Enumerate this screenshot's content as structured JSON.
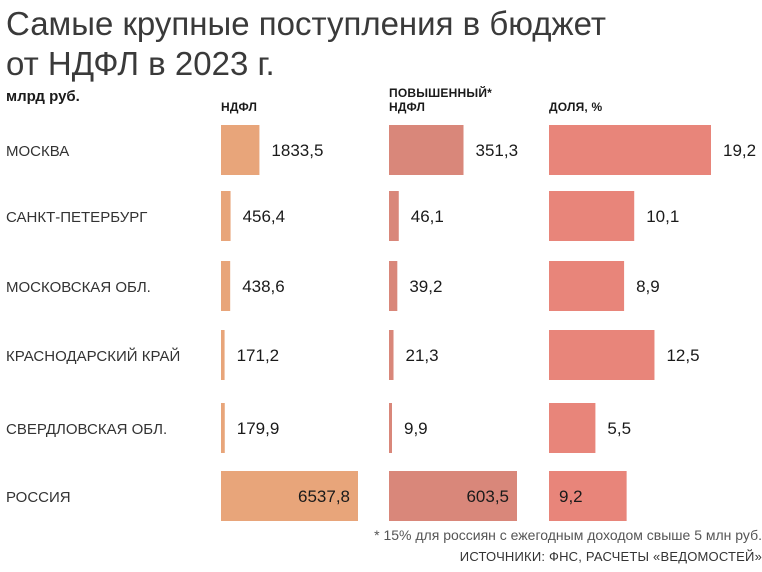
{
  "title_line1": "Самые крупные поступления в бюджет",
  "title_line2": "от НДФЛ в 2023 г.",
  "unit": "млрд руб.",
  "footnote": "* 15% для россиян с ежегодным доходом свыше 5 млн руб.",
  "sources": "ИСТОЧНИКИ: ФНС, РАСЧЕТЫ «ВЕДОМОСТЕЙ»",
  "colors": {
    "ndfl": "#e8a57a",
    "increased": "#d9877a",
    "share": "#e8857a"
  },
  "chart_data": {
    "type": "bar",
    "orientation": "horizontal",
    "categories": [
      "МОСКВА",
      "САНКТ-ПЕТЕРБУРГ",
      "МОСКОВСКАЯ ОБЛ.",
      "КРАСНОДАРСКИЙ КРАЙ",
      "СВЕРДЛОВСКАЯ ОБЛ.",
      "РОССИЯ"
    ],
    "series": [
      {
        "name": "НДФЛ",
        "values": [
          1833.5,
          456.4,
          438.6,
          171.2,
          179.9,
          6537.8
        ],
        "labels": [
          "1833,5",
          "456,4",
          "438,6",
          "171,2",
          "179,9",
          "6537,8"
        ]
      },
      {
        "name": "ПОВЫШЕННЫЙ* НДФЛ",
        "name_line1": "ПОВЫШЕННЫЙ*",
        "name_line2": "НДФЛ",
        "values": [
          351.3,
          46.1,
          39.2,
          21.3,
          9.9,
          603.5
        ],
        "labels": [
          "351,3",
          "46,1",
          "39,2",
          "21,3",
          "9,9",
          "603,5"
        ]
      },
      {
        "name": "ДОЛЯ, %",
        "values": [
          19.2,
          10.1,
          8.9,
          12.5,
          5.5,
          9.2
        ],
        "labels": [
          "19,2",
          "10,1",
          "8,9",
          "12,5",
          "5,5",
          "9,2"
        ]
      }
    ],
    "grid": false,
    "legend": "none"
  }
}
